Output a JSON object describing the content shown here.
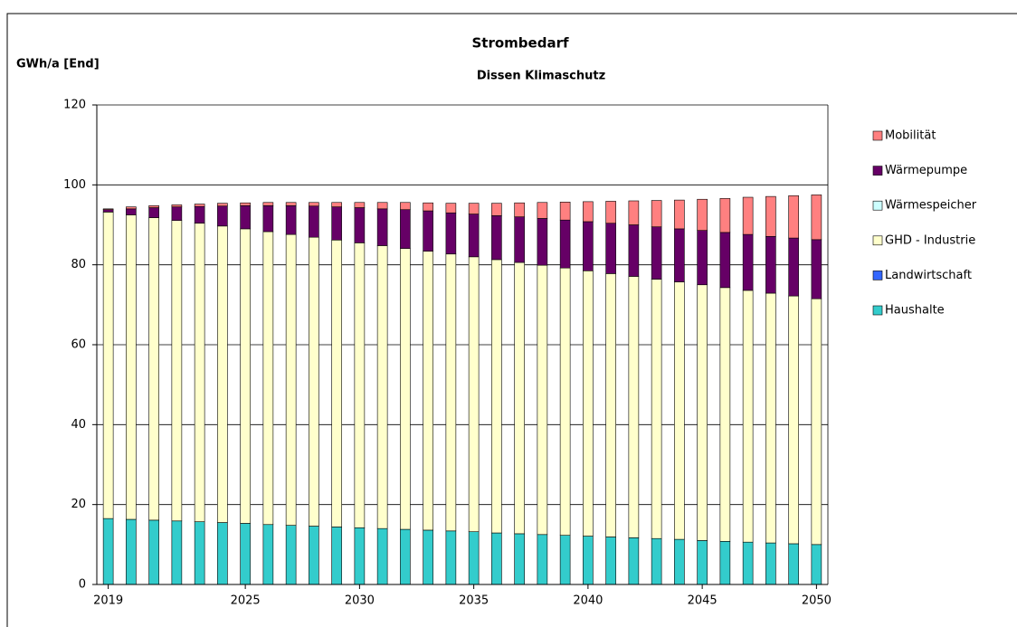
{
  "chart_data": {
    "type": "stacked_bar",
    "title": "Strombedarf",
    "subtitle": "Dissen Klimaschutz",
    "y_label": "GWh/a [End]",
    "categories": [
      "2019",
      null,
      null,
      null,
      null,
      null,
      "2025",
      null,
      null,
      null,
      null,
      "2030",
      null,
      null,
      null,
      null,
      "2035",
      null,
      null,
      null,
      null,
      "2040",
      null,
      null,
      null,
      null,
      "2045",
      null,
      null,
      null,
      null,
      "2050"
    ],
    "ylim": [
      0,
      120
    ],
    "yticks": [
      0,
      20,
      40,
      60,
      80,
      100,
      120
    ],
    "grid": true,
    "legend": "right",
    "series": [
      {
        "name": "Haushalte",
        "color": "#33cccc",
        "values": [
          16.5,
          16.3,
          16.1,
          15.9,
          15.7,
          15.5,
          15.3,
          15.0,
          14.8,
          14.6,
          14.4,
          14.2,
          14.0,
          13.8,
          13.6,
          13.4,
          13.2,
          12.9,
          12.7,
          12.5,
          12.3,
          12.1,
          11.9,
          11.7,
          11.5,
          11.3,
          11.0,
          10.8,
          10.6,
          10.4,
          10.2,
          10.0
        ]
      },
      {
        "name": "Landwirtschaft",
        "color": "#3366ff",
        "values": [
          0,
          0,
          0,
          0,
          0,
          0,
          0,
          0,
          0,
          0,
          0,
          0,
          0,
          0,
          0,
          0,
          0,
          0,
          0,
          0,
          0,
          0,
          0,
          0,
          0,
          0,
          0,
          0,
          0,
          0,
          0,
          0
        ]
      },
      {
        "name": "GHD - Industrie",
        "color": "#ffffcc",
        "values": [
          76.7,
          76.2,
          75.7,
          75.2,
          74.7,
          74.2,
          73.7,
          73.3,
          72.8,
          72.3,
          71.8,
          71.3,
          70.8,
          70.3,
          69.8,
          69.3,
          68.8,
          68.4,
          67.9,
          67.4,
          66.9,
          66.4,
          65.9,
          65.4,
          64.9,
          64.4,
          64.0,
          63.5,
          63.0,
          62.5,
          62.0,
          61.5
        ]
      },
      {
        "name": "Wärmespeicher",
        "color": "#ccffff",
        "values": [
          0,
          0,
          0,
          0,
          0,
          0,
          0,
          0,
          0,
          0,
          0,
          0,
          0,
          0,
          0,
          0,
          0,
          0,
          0,
          0,
          0,
          0,
          0,
          0,
          0,
          0,
          0,
          0,
          0,
          0,
          0,
          0
        ]
      },
      {
        "name": "Wärmepumpe",
        "color": "#660066",
        "values": [
          0.6,
          1.5,
          2.5,
          3.4,
          4.2,
          5.0,
          5.8,
          6.5,
          7.2,
          7.8,
          8.3,
          8.8,
          9.2,
          9.7,
          10.1,
          10.3,
          10.7,
          11.0,
          11.4,
          11.7,
          12.0,
          12.3,
          12.6,
          12.9,
          13.1,
          13.3,
          13.6,
          13.8,
          14.0,
          14.2,
          14.5,
          14.8
        ]
      },
      {
        "name": "Mobilität",
        "color": "#ff8080",
        "values": [
          0.2,
          0.5,
          0.5,
          0.5,
          0.6,
          0.7,
          0.7,
          0.8,
          0.8,
          0.9,
          1.1,
          1.3,
          1.6,
          1.8,
          2.0,
          2.4,
          2.7,
          3.1,
          3.5,
          4.0,
          4.5,
          5.0,
          5.5,
          6.0,
          6.6,
          7.2,
          7.8,
          8.5,
          9.3,
          10.0,
          10.6,
          11.2
        ]
      }
    ]
  }
}
